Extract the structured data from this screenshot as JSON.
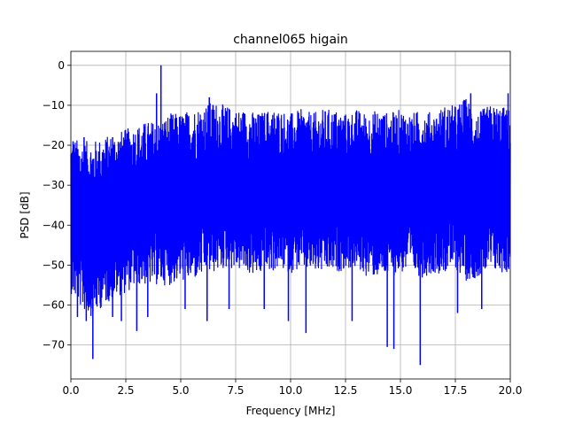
{
  "chart_data": {
    "type": "line",
    "title": "channel065 higain",
    "xlabel": "Frequency [MHz]",
    "ylabel": "PSD [dB]",
    "xlim": [
      0,
      20
    ],
    "ylim": [
      -78.5,
      3.5
    ],
    "xticks": [
      0,
      2.5,
      5,
      7.5,
      10,
      12.5,
      15,
      17.5,
      20
    ],
    "xtick_labels": [
      "0.0",
      "2.5",
      "5.0",
      "7.5",
      "10.0",
      "12.5",
      "15.0",
      "17.5",
      "20.0"
    ],
    "yticks": [
      0,
      -10,
      -20,
      -30,
      -40,
      -50,
      -60,
      -70
    ],
    "ytick_labels": [
      "0",
      "−10",
      "−20",
      "−30",
      "−40",
      "−50",
      "−60",
      "−70"
    ],
    "grid": true,
    "line_color": "#0000ff",
    "series": [
      {
        "x": [
          0,
          0.5,
          1,
          1.5,
          2,
          2.5,
          3,
          3.5,
          4,
          4.5,
          5,
          5.5,
          6,
          6.5,
          7,
          7.5,
          8,
          8.5,
          9,
          9.5,
          10,
          10.5,
          11,
          11.5,
          12,
          12.5,
          13,
          13.5,
          14,
          14.5,
          15,
          15.5,
          16,
          16.5,
          17,
          17.5,
          18,
          18.5,
          19,
          19.5,
          20
        ],
        "upper": [
          -18,
          -19,
          -19,
          -18,
          -17,
          -16,
          -15,
          -14,
          -14,
          -12,
          -12,
          -11,
          -10,
          -9,
          -10,
          -11,
          -11,
          -12,
          -11,
          -11,
          -12,
          -11,
          -12,
          -11,
          -11,
          -12,
          -11,
          -12,
          -11,
          -12,
          -11,
          -12,
          -11,
          -12,
          -10,
          -10,
          -8,
          -12,
          -10,
          -10,
          -11
        ],
        "lower": [
          -57,
          -61,
          -63,
          -60,
          -58,
          -57,
          -55,
          -55,
          -55,
          -55,
          -54,
          -54,
          -53,
          -52,
          -51,
          -51,
          -52,
          -53,
          -52,
          -51,
          -52,
          -51,
          -52,
          -52,
          -52,
          -51,
          -51,
          -53,
          -53,
          -53,
          -52,
          -52,
          -53,
          -52,
          -52,
          -51,
          -54,
          -53,
          -52,
          -52,
          -52
        ]
      }
    ],
    "peaks": [
      {
        "x": 0.1,
        "y": -19
      },
      {
        "x": 0.6,
        "y": -18
      },
      {
        "x": 1.9,
        "y": -18
      },
      {
        "x": 3.9,
        "y": -7
      },
      {
        "x": 4.1,
        "y": 0
      },
      {
        "x": 6.3,
        "y": -8
      },
      {
        "x": 18.2,
        "y": -7
      },
      {
        "x": 19.9,
        "y": -7
      }
    ],
    "dips": [
      {
        "x": 0.3,
        "y": -63
      },
      {
        "x": 0.7,
        "y": -64
      },
      {
        "x": 1.0,
        "y": -73.5
      },
      {
        "x": 1.9,
        "y": -63
      },
      {
        "x": 2.3,
        "y": -64
      },
      {
        "x": 3.0,
        "y": -66.5
      },
      {
        "x": 3.5,
        "y": -63
      },
      {
        "x": 5.2,
        "y": -61
      },
      {
        "x": 6.2,
        "y": -64
      },
      {
        "x": 7.2,
        "y": -61
      },
      {
        "x": 8.8,
        "y": -61
      },
      {
        "x": 9.9,
        "y": -64
      },
      {
        "x": 10.7,
        "y": -67
      },
      {
        "x": 12.8,
        "y": -64
      },
      {
        "x": 14.4,
        "y": -70.5
      },
      {
        "x": 14.7,
        "y": -71
      },
      {
        "x": 15.9,
        "y": -75
      },
      {
        "x": 17.6,
        "y": -62
      },
      {
        "x": 18.7,
        "y": -61
      }
    ]
  }
}
